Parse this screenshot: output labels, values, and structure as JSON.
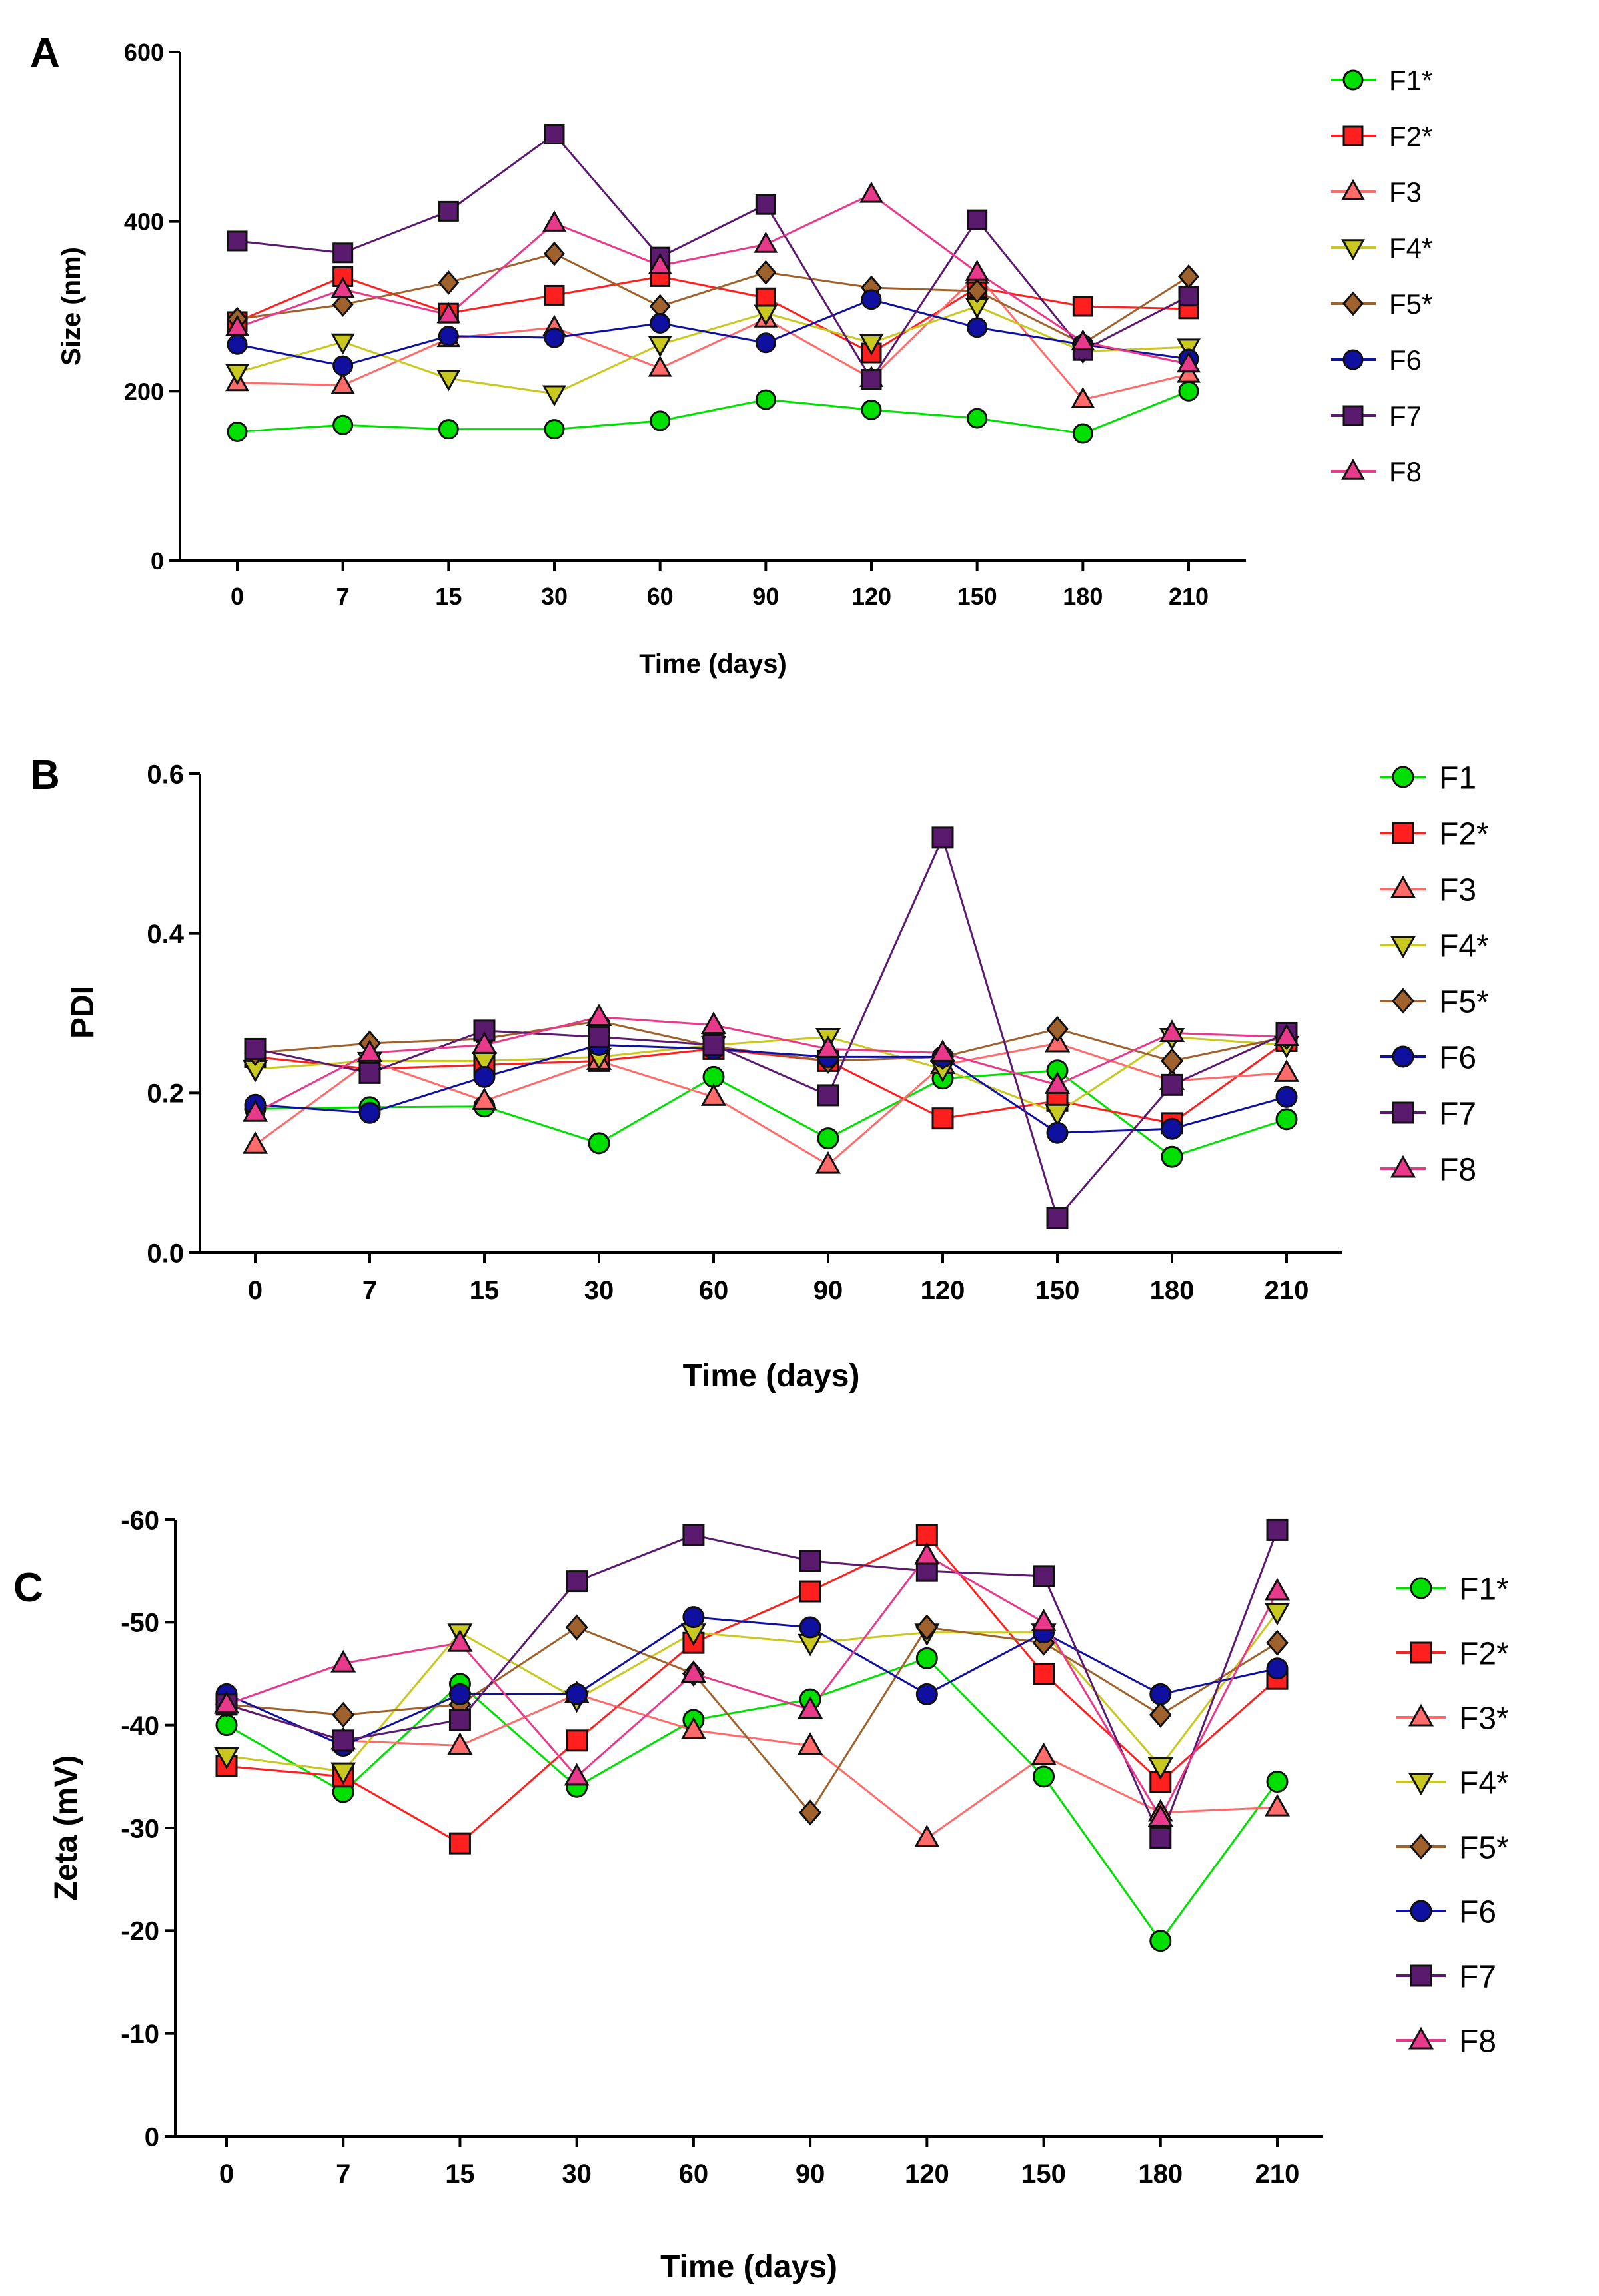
{
  "chart_data": [
    {
      "type": "line",
      "panel_label": "A",
      "title": "",
      "xlabel": "Time (days)",
      "ylabel": "Size (nm)",
      "categories": [
        "0",
        "7",
        "15",
        "30",
        "60",
        "90",
        "120",
        "150",
        "180",
        "210"
      ],
      "ylim": [
        0,
        600
      ],
      "yticks": [
        "0",
        "200",
        "400",
        "600"
      ],
      "grid": false,
      "legend_position": "right",
      "series": [
        {
          "name": "F1*",
          "color": "#00e000",
          "marker": "circle",
          "values": [
            152,
            160,
            155,
            155,
            165,
            190,
            178,
            168,
            150,
            200
          ]
        },
        {
          "name": "F2*",
          "color": "#ff1f1f",
          "marker": "square",
          "values": [
            282,
            335,
            292,
            313,
            335,
            310,
            245,
            322,
            300,
            297
          ]
        },
        {
          "name": "F3",
          "color": "#ff6a6a",
          "marker": "triangle",
          "values": [
            210,
            207,
            262,
            275,
            227,
            285,
            215,
            337,
            190,
            220
          ]
        },
        {
          "name": "F4*",
          "color": "#c8c81e",
          "marker": "triangle-down",
          "values": [
            222,
            258,
            215,
            197,
            255,
            292,
            257,
            300,
            247,
            252
          ]
        },
        {
          "name": "F5*",
          "color": "#a0622d",
          "marker": "diamond",
          "values": [
            285,
            302,
            328,
            362,
            300,
            340,
            322,
            318,
            256,
            335
          ]
        },
        {
          "name": "F6",
          "color": "#1010a0",
          "marker": "circle",
          "values": [
            255,
            230,
            265,
            263,
            280,
            257,
            308,
            275,
            255,
            238
          ]
        },
        {
          "name": "F7",
          "color": "#5a1a6e",
          "marker": "square",
          "values": [
            377,
            363,
            412,
            503,
            358,
            420,
            214,
            402,
            248,
            312
          ]
        },
        {
          "name": "F8",
          "color": "#e8398a",
          "marker": "triangle",
          "values": [
            275,
            320,
            290,
            398,
            348,
            373,
            432,
            340,
            258,
            232
          ]
        }
      ]
    },
    {
      "type": "line",
      "panel_label": "B",
      "title": "",
      "xlabel": "Time (days)",
      "ylabel": "PDI",
      "categories": [
        "0",
        "7",
        "15",
        "30",
        "60",
        "90",
        "120",
        "150",
        "180",
        "210"
      ],
      "ylim": [
        0,
        0.6
      ],
      "yticks": [
        "0.0",
        "0.2",
        "0.4",
        "0.6"
      ],
      "grid": false,
      "legend_position": "right",
      "series": [
        {
          "name": "F1",
          "color": "#00e000",
          "marker": "circle",
          "values": [
            0.18,
            0.182,
            0.183,
            0.137,
            0.22,
            0.143,
            0.218,
            0.228,
            0.12,
            0.167
          ]
        },
        {
          "name": "F2*",
          "color": "#ff1f1f",
          "marker": "square",
          "values": [
            0.245,
            0.23,
            0.235,
            0.24,
            0.255,
            0.24,
            0.168,
            0.19,
            0.162,
            0.265
          ]
        },
        {
          "name": "F3",
          "color": "#ff6a6a",
          "marker": "triangle",
          "values": [
            0.135,
            0.24,
            0.19,
            0.24,
            0.195,
            0.11,
            0.235,
            0.262,
            0.215,
            0.225
          ]
        },
        {
          "name": "F4*",
          "color": "#c8c81e",
          "marker": "triangle-down",
          "values": [
            0.23,
            0.24,
            0.24,
            0.245,
            0.26,
            0.27,
            0.23,
            0.175,
            0.27,
            0.26
          ]
        },
        {
          "name": "F5*",
          "color": "#a0622d",
          "marker": "diamond",
          "values": [
            0.25,
            0.262,
            0.268,
            0.29,
            0.258,
            0.24,
            0.245,
            0.28,
            0.24,
            0.27
          ]
        },
        {
          "name": "F6",
          "color": "#1010a0",
          "marker": "circle",
          "values": [
            0.185,
            0.175,
            0.22,
            0.26,
            0.255,
            0.245,
            0.245,
            0.15,
            0.155,
            0.195
          ]
        },
        {
          "name": "F7",
          "color": "#5a1a6e",
          "marker": "square",
          "values": [
            0.255,
            0.225,
            0.278,
            0.27,
            0.26,
            0.197,
            0.52,
            0.043,
            0.21,
            0.275
          ]
        },
        {
          "name": "F8",
          "color": "#e8398a",
          "marker": "triangle",
          "values": [
            0.175,
            0.25,
            0.26,
            0.295,
            0.285,
            0.255,
            0.25,
            0.21,
            0.275,
            0.27
          ]
        }
      ]
    },
    {
      "type": "line",
      "panel_label": "C",
      "title": "",
      "xlabel": "Time (days)",
      "ylabel": "Zeta (mV)",
      "categories": [
        "0",
        "7",
        "15",
        "30",
        "60",
        "90",
        "120",
        "150",
        "180",
        "210"
      ],
      "ylim": [
        0,
        -60
      ],
      "yticks": [
        "0",
        "-10",
        "-20",
        "-30",
        "-40",
        "-50",
        "-60"
      ],
      "grid": false,
      "legend_position": "right",
      "series": [
        {
          "name": "F1*",
          "color": "#00e000",
          "marker": "circle",
          "values": [
            -40,
            -33.5,
            -44,
            -34,
            -40.5,
            -42.5,
            -46.5,
            -35,
            -19,
            -34.5
          ]
        },
        {
          "name": "F2*",
          "color": "#ff1f1f",
          "marker": "square",
          "values": [
            -36,
            -35,
            -28.5,
            -38.5,
            -48,
            -53,
            -58.5,
            -45,
            -34.5,
            -44.5
          ]
        },
        {
          "name": "F3*",
          "color": "#ff6a6a",
          "marker": "triangle",
          "values": [
            -42,
            -38.5,
            -38,
            -43,
            -39.5,
            -38,
            -29,
            -37,
            -31.5,
            -32
          ]
        },
        {
          "name": "F4*",
          "color": "#c8c81e",
          "marker": "triangle-down",
          "values": [
            -37,
            -35.5,
            -49,
            -42.5,
            -49,
            -48,
            -49,
            -49,
            -36,
            -51
          ]
        },
        {
          "name": "F5*",
          "color": "#a0622d",
          "marker": "diamond",
          "values": [
            -42,
            -41,
            -42,
            -49.5,
            -45,
            -31.5,
            -49.5,
            -48,
            -41,
            -48
          ]
        },
        {
          "name": "F6",
          "color": "#1010a0",
          "marker": "circle",
          "values": [
            -43,
            -38,
            -43,
            -43,
            -50.5,
            -49.5,
            -43,
            -49,
            -43,
            -45.5
          ]
        },
        {
          "name": "F7",
          "color": "#5a1a6e",
          "marker": "square",
          "values": [
            -42,
            -38.5,
            -40.5,
            -54,
            -58.5,
            -56,
            -55,
            -54.5,
            -29,
            -59
          ]
        },
        {
          "name": "F8",
          "color": "#e8398a",
          "marker": "triangle",
          "values": [
            -42,
            -46,
            -48,
            -35,
            -45,
            -41.5,
            -56.5,
            -50,
            -31,
            -53
          ]
        }
      ]
    }
  ]
}
